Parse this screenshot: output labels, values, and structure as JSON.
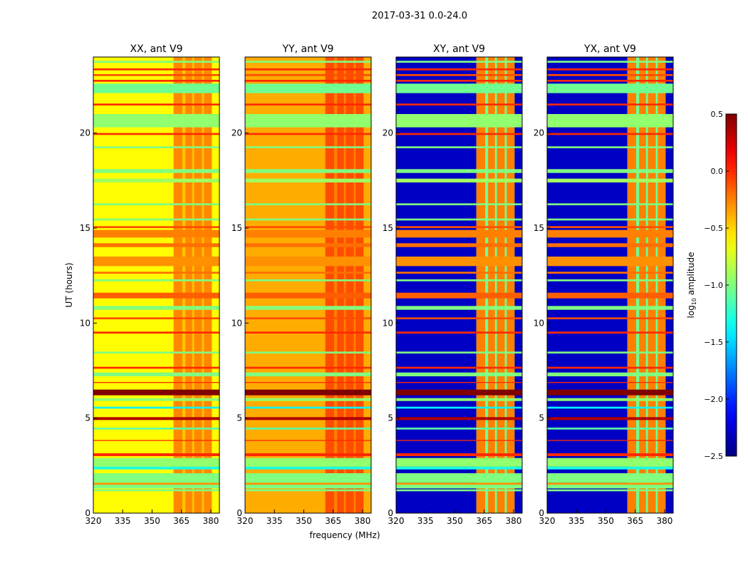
{
  "chart_data": {
    "type": "heatmap",
    "title": "2017-03-31 0.0-24.0",
    "xlabel": "frequency (MHz)",
    "ylabel": "UT (hours)",
    "xlim": [
      320,
      384.4
    ],
    "ylim": [
      0,
      24
    ],
    "xticks": [
      "320",
      "335",
      "350",
      "365",
      "380"
    ],
    "xtick_values": [
      320,
      335,
      350,
      365,
      380
    ],
    "yticks": [
      "0",
      "5",
      "10",
      "15",
      "20"
    ],
    "ytick_values": [
      0,
      5,
      10,
      15,
      20
    ],
    "colormap": "jet",
    "colorbar": {
      "label_main": "log",
      "label_sub": "10",
      "label_rest": " amplitude",
      "range": [
        -2.5,
        0.5
      ],
      "ticks": [
        "0.5",
        "0.0",
        "−0.5",
        "−1.0",
        "−1.5",
        "−2.0",
        "−2.5"
      ],
      "tick_values": [
        0.5,
        0.0,
        -0.5,
        -1.0,
        -1.5,
        -2.0,
        -2.5
      ]
    },
    "bright_subbands_mhz": [
      [
        361,
        365.5
      ],
      [
        367,
        370.5
      ],
      [
        371.5,
        375.5
      ],
      [
        376.5,
        380.5
      ]
    ],
    "panels": [
      {
        "title": "XX, ant V9",
        "base": -0.62,
        "band_boost": 0.35,
        "band_region": -0.45
      },
      {
        "title": "YY, ant V9",
        "base": -0.38,
        "band_boost": 0.3,
        "band_region": -0.25
      },
      {
        "title": "XY, ant V9",
        "base": -2.3,
        "band_boost": 1.6,
        "band_region": -1.05
      },
      {
        "title": "YX, ant V9",
        "base": -2.3,
        "band_boost": 1.6,
        "band_region": -1.05
      }
    ],
    "time_rows": [
      {
        "t0": 1.15,
        "t1": 1.25,
        "v": -1.0
      },
      {
        "t0": 1.3,
        "t1": 1.5,
        "v": -1.0
      },
      {
        "t0": 1.5,
        "t1": 1.6,
        "v": -0.3
      },
      {
        "t0": 1.6,
        "t1": 2.1,
        "v": -1.0
      },
      {
        "t0": 2.3,
        "t1": 2.45,
        "v": -1.3
      },
      {
        "t0": 2.45,
        "t1": 2.9,
        "v": -0.95
      },
      {
        "t0": 3.0,
        "t1": 3.15,
        "v": 0.0
      },
      {
        "t0": 3.8,
        "t1": 3.85,
        "v": 0.0
      },
      {
        "t0": 4.4,
        "t1": 4.5,
        "v": -1.1
      },
      {
        "t0": 4.9,
        "t1": 5.05,
        "v": 0.35
      },
      {
        "t0": 5.5,
        "t1": 5.6,
        "v": -1.4
      },
      {
        "t0": 5.9,
        "t1": 6.05,
        "v": -0.95
      },
      {
        "t0": 6.2,
        "t1": 6.5,
        "v": 0.5
      },
      {
        "t0": 6.85,
        "t1": 6.9,
        "v": 0.0
      },
      {
        "t0": 7.2,
        "t1": 7.4,
        "v": -1.0
      },
      {
        "t0": 7.6,
        "t1": 7.7,
        "v": 0.0
      },
      {
        "t0": 8.4,
        "t1": 8.5,
        "v": -1.0
      },
      {
        "t0": 9.45,
        "t1": 9.55,
        "v": 0.0
      },
      {
        "t0": 10.2,
        "t1": 10.3,
        "v": -0.1
      },
      {
        "t0": 10.7,
        "t1": 10.9,
        "v": -1.0
      },
      {
        "t0": 11.3,
        "t1": 11.6,
        "v": -0.15
      },
      {
        "t0": 12.2,
        "t1": 12.3,
        "v": -1.0
      },
      {
        "t0": 12.6,
        "t1": 12.7,
        "v": -0.2
      },
      {
        "t0": 13.0,
        "t1": 13.5,
        "v": -0.3
      },
      {
        "t0": 14.0,
        "t1": 14.2,
        "v": -0.2
      },
      {
        "t0": 14.5,
        "t1": 14.9,
        "v": -0.25
      },
      {
        "t0": 15.0,
        "t1": 15.1,
        "v": -0.1
      },
      {
        "t0": 15.4,
        "t1": 15.5,
        "v": -1.0
      },
      {
        "t0": 16.2,
        "t1": 16.3,
        "v": -1.0
      },
      {
        "t0": 17.4,
        "t1": 17.6,
        "v": -0.9
      },
      {
        "t0": 17.9,
        "t1": 18.1,
        "v": -1.0
      },
      {
        "t0": 19.2,
        "t1": 19.3,
        "v": -1.0
      },
      {
        "t0": 19.9,
        "t1": 20.0,
        "v": 0.0
      },
      {
        "t0": 20.3,
        "t1": 21.0,
        "v": -0.95
      },
      {
        "t0": 21.45,
        "t1": 21.55,
        "v": 0.0
      },
      {
        "t0": 22.1,
        "t1": 22.6,
        "v": -1.05
      },
      {
        "t0": 22.7,
        "t1": 22.8,
        "v": 0.0
      },
      {
        "t0": 23.0,
        "t1": 23.1,
        "v": -0.1
      },
      {
        "t0": 23.3,
        "t1": 23.4,
        "v": 0.0
      },
      {
        "t0": 23.7,
        "t1": 23.8,
        "v": -1.0
      }
    ]
  }
}
